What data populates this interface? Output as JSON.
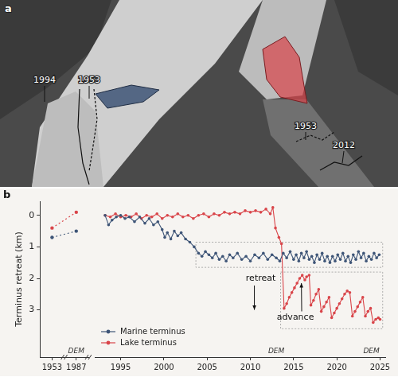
{
  "image_panel": {
    "letter": "a",
    "labels": [
      "1994",
      "1953",
      "1953",
      "2012"
    ]
  },
  "chart_panel": {
    "letter": "b"
  },
  "chart_data": [
    {
      "type": "line",
      "y_label": "Terminus retreat (km)",
      "categories": [
        "1953",
        "1987"
      ],
      "series": [
        {
          "color": "#3e5577",
          "values": [
            0.7,
            0.5
          ],
          "marker": "circle",
          "line_style": "dotted"
        },
        {
          "color": "#d9454a",
          "values": [
            0.4,
            -0.1
          ],
          "marker": "circle",
          "line_style": "dotted"
        }
      ],
      "ylim": [
        4.5,
        -0.45
      ],
      "yticks": [
        0,
        1,
        2,
        3
      ],
      "dem_markers": [
        {
          "x": "1987",
          "label": "DEM"
        }
      ]
    },
    {
      "type": "line",
      "series": [
        {
          "name": "Marine terminus",
          "color": "#3e5577",
          "marker": "circle",
          "line_style": "solid",
          "x": [
            1993.2,
            1993.6,
            1994.0,
            1994.5,
            1995.0,
            1995.5,
            1996.0,
            1996.6,
            1997.2,
            1997.8,
            1998.3,
            1998.8,
            1999.3,
            1999.8,
            2000.1,
            2000.4,
            2000.8,
            2001.2,
            2001.6,
            2002.0,
            2002.5,
            2003.0,
            2003.5,
            2004.0,
            2004.4,
            2004.8,
            2005.2,
            2005.6,
            2006.0,
            2006.4,
            2006.8,
            2007.2,
            2007.6,
            2008.0,
            2008.5,
            2009.0,
            2009.5,
            2010.0,
            2010.5,
            2011.0,
            2011.5,
            2012.0,
            2012.5,
            2013.0,
            2013.4,
            2013.8,
            2014.2,
            2014.6,
            2015.0,
            2015.3,
            2015.6,
            2015.9,
            2016.2,
            2016.5,
            2016.8,
            2017.1,
            2017.4,
            2017.7,
            2018.0,
            2018.3,
            2018.6,
            2018.9,
            2019.2,
            2019.5,
            2019.8,
            2020.1,
            2020.4,
            2020.7,
            2021.0,
            2021.3,
            2021.6,
            2021.9,
            2022.2,
            2022.5,
            2022.8,
            2023.1,
            2023.4,
            2023.7,
            2024.0,
            2024.3,
            2024.6,
            2024.9
          ],
          "values": [
            0.0,
            0.3,
            0.15,
            0.05,
            0.0,
            0.1,
            0.05,
            0.2,
            0.05,
            0.25,
            0.1,
            0.3,
            0.2,
            0.45,
            0.7,
            0.55,
            0.75,
            0.5,
            0.65,
            0.55,
            0.75,
            0.85,
            1.0,
            1.2,
            1.3,
            1.15,
            1.25,
            1.35,
            1.2,
            1.4,
            1.3,
            1.45,
            1.25,
            1.35,
            1.2,
            1.4,
            1.3,
            1.45,
            1.25,
            1.35,
            1.2,
            1.4,
            1.25,
            1.35,
            1.45,
            1.2,
            1.35,
            1.15,
            1.4,
            1.25,
            1.45,
            1.2,
            1.35,
            1.15,
            1.4,
            1.3,
            1.5,
            1.25,
            1.4,
            1.2,
            1.45,
            1.3,
            1.5,
            1.3,
            1.45,
            1.25,
            1.4,
            1.2,
            1.45,
            1.3,
            1.5,
            1.25,
            1.4,
            1.15,
            1.35,
            1.2,
            1.45,
            1.3,
            1.4,
            1.2,
            1.35,
            1.25
          ]
        },
        {
          "name": "Lake terminus",
          "color": "#d9454a",
          "marker": "circle",
          "line_style": "solid",
          "x": [
            1993.2,
            1993.8,
            1994.4,
            1995.0,
            1995.6,
            1996.2,
            1996.8,
            1997.4,
            1998.0,
            1998.6,
            1999.2,
            1999.8,
            2000.4,
            2001.0,
            2001.6,
            2002.2,
            2002.8,
            2003.4,
            2004.0,
            2004.6,
            2005.2,
            2005.8,
            2006.4,
            2007.0,
            2007.6,
            2008.2,
            2008.8,
            2009.4,
            2010.0,
            2010.6,
            2011.2,
            2011.8,
            2012.3,
            2012.6,
            2012.9,
            2013.3,
            2013.6,
            2013.9,
            2014.2,
            2014.5,
            2014.8,
            2015.1,
            2015.4,
            2015.7,
            2016.0,
            2016.3,
            2016.5,
            2016.8,
            2017.0,
            2017.3,
            2017.6,
            2017.9,
            2018.2,
            2018.5,
            2018.8,
            2019.1,
            2019.4,
            2019.7,
            2020.0,
            2020.3,
            2020.6,
            2020.9,
            2021.2,
            2021.5,
            2021.8,
            2022.1,
            2022.4,
            2022.7,
            2023.0,
            2023.3,
            2023.6,
            2023.9,
            2024.2,
            2024.5,
            2024.8,
            2025.0
          ],
          "values": [
            0.0,
            0.05,
            -0.05,
            0.05,
            0.0,
            0.05,
            -0.05,
            0.1,
            0.0,
            0.05,
            -0.05,
            0.1,
            0.0,
            0.05,
            -0.05,
            0.05,
            0.0,
            0.1,
            0.0,
            -0.05,
            0.05,
            -0.05,
            0.0,
            -0.1,
            -0.05,
            -0.1,
            -0.05,
            -0.15,
            -0.1,
            -0.15,
            -0.1,
            -0.2,
            -0.05,
            -0.25,
            0.4,
            0.7,
            0.9,
            2.95,
            2.8,
            2.6,
            2.45,
            2.3,
            2.15,
            2.0,
            1.9,
            2.05,
            1.95,
            1.9,
            2.85,
            2.7,
            2.5,
            2.35,
            3.05,
            2.9,
            2.75,
            2.6,
            3.25,
            3.1,
            2.95,
            2.8,
            2.65,
            2.5,
            2.4,
            2.45,
            3.2,
            3.05,
            2.9,
            2.75,
            2.6,
            3.2,
            3.05,
            2.95,
            3.4,
            3.3,
            3.25,
            3.3
          ]
        }
      ],
      "xlim": [
        1992,
        2025.6
      ],
      "xticks": [
        1995,
        2000,
        2005,
        2010,
        2015,
        2020,
        2025
      ],
      "ylim": [
        4.5,
        -0.45
      ],
      "legend": "lower left",
      "annotations": [
        {
          "text": "retreat"
        },
        {
          "text": "advance"
        }
      ],
      "highlight_boxes": [
        {
          "x": [
            2003.7,
            2025.3
          ],
          "y": [
            0.85,
            1.65
          ]
        },
        {
          "x": [
            2013.5,
            2025.3
          ],
          "y": [
            1.8,
            3.6
          ]
        }
      ],
      "dem_markers": [
        {
          "x": 2013,
          "label": "DEM"
        },
        {
          "x": 2024,
          "label": "DEM"
        }
      ]
    }
  ]
}
